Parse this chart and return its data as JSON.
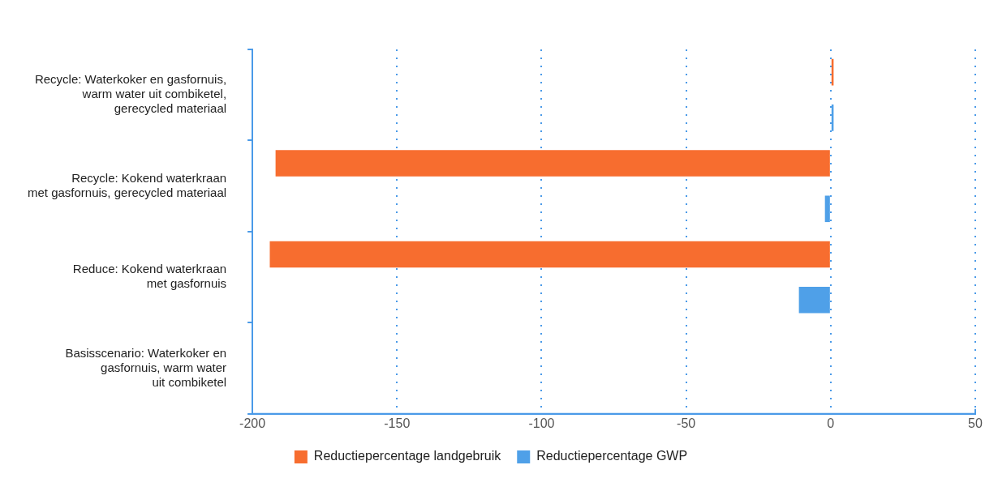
{
  "chart_data": {
    "type": "bar",
    "orientation": "horizontal",
    "categories": [
      "Recycle: Waterkoker en gasfornuis,\nwarm water uit combiketel,\ngerecycled materiaal",
      "Recycle: Kokend waterkraan\nmet gasfornuis, gerecycled materiaal",
      "Reduce: Kokend waterkraan\nmet gasfornuis",
      "Basisscenario: Waterkoker en\ngasfornuis, warm water\nuit combiketel"
    ],
    "series": [
      {
        "name": "Reductiepercentage landgebruik",
        "color": "#f76d2f",
        "values": [
          1,
          -192,
          -194,
          0
        ]
      },
      {
        "name": "Reductiepercentage GWP",
        "color": "#4fa0e8",
        "values": [
          1,
          -2,
          -11,
          0
        ]
      }
    ],
    "xlim": [
      -200,
      50
    ],
    "xticks": [
      -200,
      -150,
      -100,
      -50,
      0,
      50
    ],
    "grid": "x",
    "legend": "bottom"
  }
}
